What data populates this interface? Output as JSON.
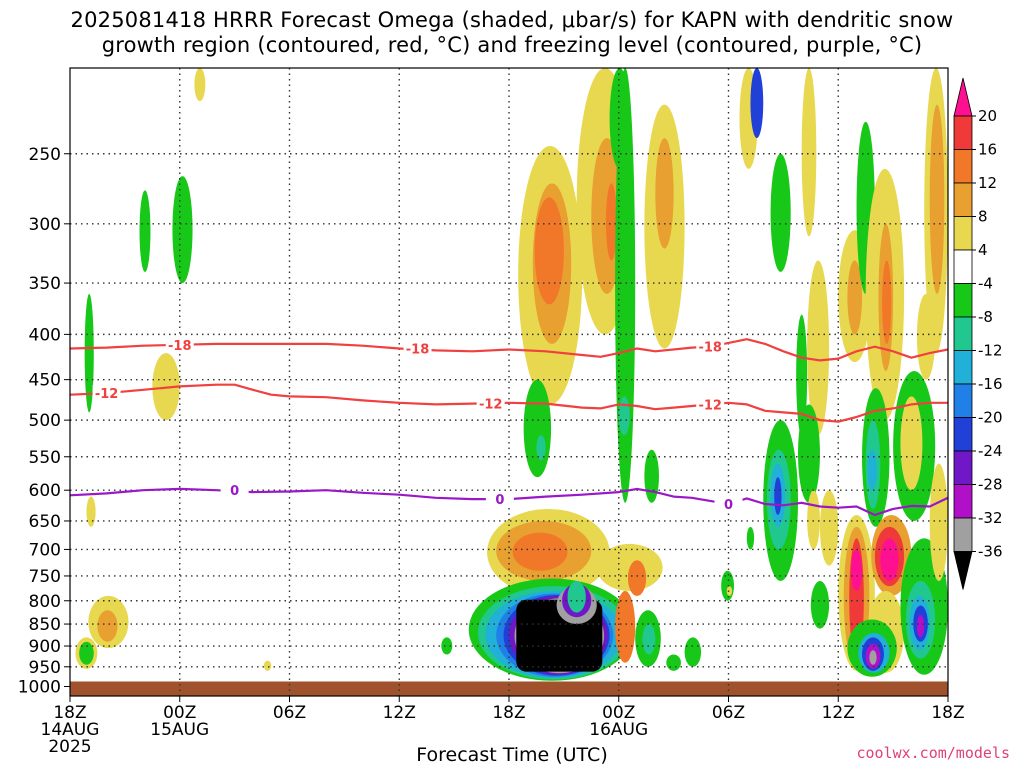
{
  "title_line1": "2025081418 HRRR Forecast Omega (shaded, μbar/s) for KAPN with dendritic snow",
  "title_line2": "growth region (contoured, red, °C) and freezing level (contoured, purple, °C)",
  "xlabel": "Forecast Time (UTC)",
  "credit": "coolwx.com/models",
  "chart_data": {
    "type": "heatmap",
    "title": "2025081418 HRRR Forecast Omega (shaded, μbar/s) for KAPN with dendritic snow growth region (contoured, red, °C) and freezing level (contoured, purple, °C)",
    "xlabel": "Forecast Time (UTC)",
    "ylabel": "",
    "x_ticks": [
      {
        "hour": 0,
        "labels": [
          "18Z",
          "14AUG",
          "2025"
        ]
      },
      {
        "hour": 6,
        "labels": [
          "00Z",
          "15AUG"
        ]
      },
      {
        "hour": 12,
        "labels": [
          "06Z"
        ]
      },
      {
        "hour": 18,
        "labels": [
          "12Z"
        ]
      },
      {
        "hour": 24,
        "labels": [
          "18Z"
        ]
      },
      {
        "hour": 30,
        "labels": [
          "00Z",
          "16AUG"
        ]
      },
      {
        "hour": 36,
        "labels": [
          "06Z"
        ]
      },
      {
        "hour": 42,
        "labels": [
          "12Z"
        ]
      },
      {
        "hour": 48,
        "labels": [
          "18Z"
        ]
      }
    ],
    "xlim": [
      0,
      48
    ],
    "y_ticks": [
      250,
      300,
      350,
      400,
      450,
      500,
      550,
      600,
      650,
      700,
      750,
      800,
      850,
      900,
      950,
      1000
    ],
    "ylim": [
      200,
      1025
    ],
    "y_scale": "log (pressure)",
    "grid": true,
    "colorbar": {
      "labels": [
        20,
        16,
        12,
        8,
        4,
        -4,
        -8,
        -12,
        -16,
        -20,
        -24,
        -28,
        -32,
        -36
      ],
      "colors": [
        "#ff1090",
        "#f03a3a",
        "#f07828",
        "#e8a030",
        "#e8d850",
        "#ffffff",
        "#18c818",
        "#20c890",
        "#20b0d8",
        "#2080e8",
        "#2040d8",
        "#7018c8",
        "#b010c8",
        "#a0a0a0",
        "#000000"
      ]
    },
    "contours": [
      {
        "name": "-18",
        "color": "#f04040",
        "labels": [
          "-18",
          "-18",
          "-18"
        ],
        "points": [
          [
            0,
            415
          ],
          [
            2,
            414
          ],
          [
            4,
            412
          ],
          [
            6,
            411
          ],
          [
            8,
            410
          ],
          [
            10,
            410
          ],
          [
            12,
            410
          ],
          [
            14,
            410
          ],
          [
            16,
            412
          ],
          [
            18,
            415
          ],
          [
            20,
            417
          ],
          [
            22,
            418
          ],
          [
            24,
            416
          ],
          [
            26,
            418
          ],
          [
            28,
            422
          ],
          [
            29,
            424
          ],
          [
            30,
            420
          ],
          [
            31,
            415
          ],
          [
            32,
            418
          ],
          [
            34,
            414
          ],
          [
            35,
            413
          ],
          [
            36,
            409
          ],
          [
            37,
            405
          ],
          [
            38,
            410
          ],
          [
            39,
            418
          ],
          [
            40,
            425
          ],
          [
            41,
            428
          ],
          [
            42,
            426
          ],
          [
            43,
            418
          ],
          [
            44,
            413
          ],
          [
            45,
            418
          ],
          [
            46,
            425
          ],
          [
            47,
            420
          ],
          [
            48,
            416
          ]
        ]
      },
      {
        "name": "-12",
        "color": "#f04040",
        "labels": [
          "-12",
          "-12",
          "-12"
        ],
        "points": [
          [
            0,
            468
          ],
          [
            2,
            466
          ],
          [
            4,
            462
          ],
          [
            6,
            458
          ],
          [
            8,
            456
          ],
          [
            9,
            456
          ],
          [
            10,
            462
          ],
          [
            11,
            468
          ],
          [
            12,
            470
          ],
          [
            14,
            471
          ],
          [
            16,
            475
          ],
          [
            18,
            478
          ],
          [
            20,
            480
          ],
          [
            22,
            479
          ],
          [
            24,
            478
          ],
          [
            26,
            479
          ],
          [
            28,
            484
          ],
          [
            29,
            485
          ],
          [
            30,
            480
          ],
          [
            31,
            482
          ],
          [
            32,
            486
          ],
          [
            33,
            484
          ],
          [
            34,
            482
          ],
          [
            35,
            480
          ],
          [
            36,
            478
          ],
          [
            37,
            480
          ],
          [
            38,
            488
          ],
          [
            39,
            490
          ],
          [
            40,
            492
          ],
          [
            41,
            500
          ],
          [
            42,
            502
          ],
          [
            43,
            496
          ],
          [
            44,
            488
          ],
          [
            45,
            485
          ],
          [
            46,
            480
          ],
          [
            47,
            478
          ],
          [
            48,
            478
          ]
        ]
      },
      {
        "name": "0",
        "color": "#9a18c8",
        "labels": [
          "0",
          "0",
          "0"
        ],
        "points": [
          [
            0,
            608
          ],
          [
            2,
            605
          ],
          [
            4,
            600
          ],
          [
            6,
            598
          ],
          [
            8,
            600
          ],
          [
            10,
            603
          ],
          [
            12,
            602
          ],
          [
            14,
            600
          ],
          [
            16,
            604
          ],
          [
            18,
            607
          ],
          [
            20,
            612
          ],
          [
            22,
            614
          ],
          [
            24,
            614
          ],
          [
            26,
            610
          ],
          [
            28,
            607
          ],
          [
            30,
            603
          ],
          [
            31,
            598
          ],
          [
            32,
            603
          ],
          [
            33,
            610
          ],
          [
            34,
            612
          ],
          [
            35,
            617
          ],
          [
            36,
            622
          ],
          [
            37,
            613
          ],
          [
            38,
            622
          ],
          [
            39,
            624
          ],
          [
            40,
            620
          ],
          [
            41,
            626
          ],
          [
            42,
            628
          ],
          [
            43,
            626
          ],
          [
            44,
            640
          ],
          [
            45,
            630
          ],
          [
            46,
            625
          ],
          [
            47,
            626
          ],
          [
            48,
            612
          ]
        ]
      }
    ],
    "regions": [
      {
        "value": -36,
        "hours": [
          24.3,
          29.2
        ],
        "p": [
          790,
          965
        ],
        "color": "#000000",
        "note": "strong upward motion core, outlined by -32 gray and -28 purple shells"
      },
      {
        "value": -16,
        "hours": [
          21.5,
          31
        ],
        "p": [
          760,
          980
        ],
        "color": "#20b0d8",
        "note": "broad upward motion envelope"
      },
      {
        "value": 8,
        "hours": [
          24,
          29
        ],
        "p": [
          640,
          740
        ],
        "color": "#e8a030",
        "note": "sinking motion band above core"
      },
      {
        "value": 8,
        "hours": [
          25.5,
          31
        ],
        "p": [
          250,
          440
        ],
        "color": "#e8a030",
        "note": "upper-level sinking columns"
      },
      {
        "value": -8,
        "hours": [
          29.5,
          30.5
        ],
        "p": [
          200,
          600
        ],
        "color": "#18c818",
        "note": "narrow upward column"
      },
      {
        "value": -12,
        "hours": [
          38,
          39.5
        ],
        "p": [
          530,
          680
        ],
        "color": "#20c890",
        "note": "upward motion column"
      },
      {
        "value": 16,
        "hours": [
          42.5,
          43.5
        ],
        "p": [
          680,
          760
        ],
        "color": "#ff1090",
        "note": "strong sinking motion"
      },
      {
        "value": 16,
        "hours": [
          44,
          45.5
        ],
        "p": [
          680,
          760
        ],
        "color": "#ff1090",
        "note": "strong sinking motion"
      },
      {
        "value": -28,
        "hours": [
          43,
          44.5
        ],
        "p": [
          880,
          960
        ],
        "color": "#7018c8",
        "note": "low-level upward motion"
      },
      {
        "value": -24,
        "hours": [
          46,
          47
        ],
        "p": [
          820,
          900
        ],
        "color": "#2040d8",
        "note": "low-level upward motion"
      }
    ]
  }
}
